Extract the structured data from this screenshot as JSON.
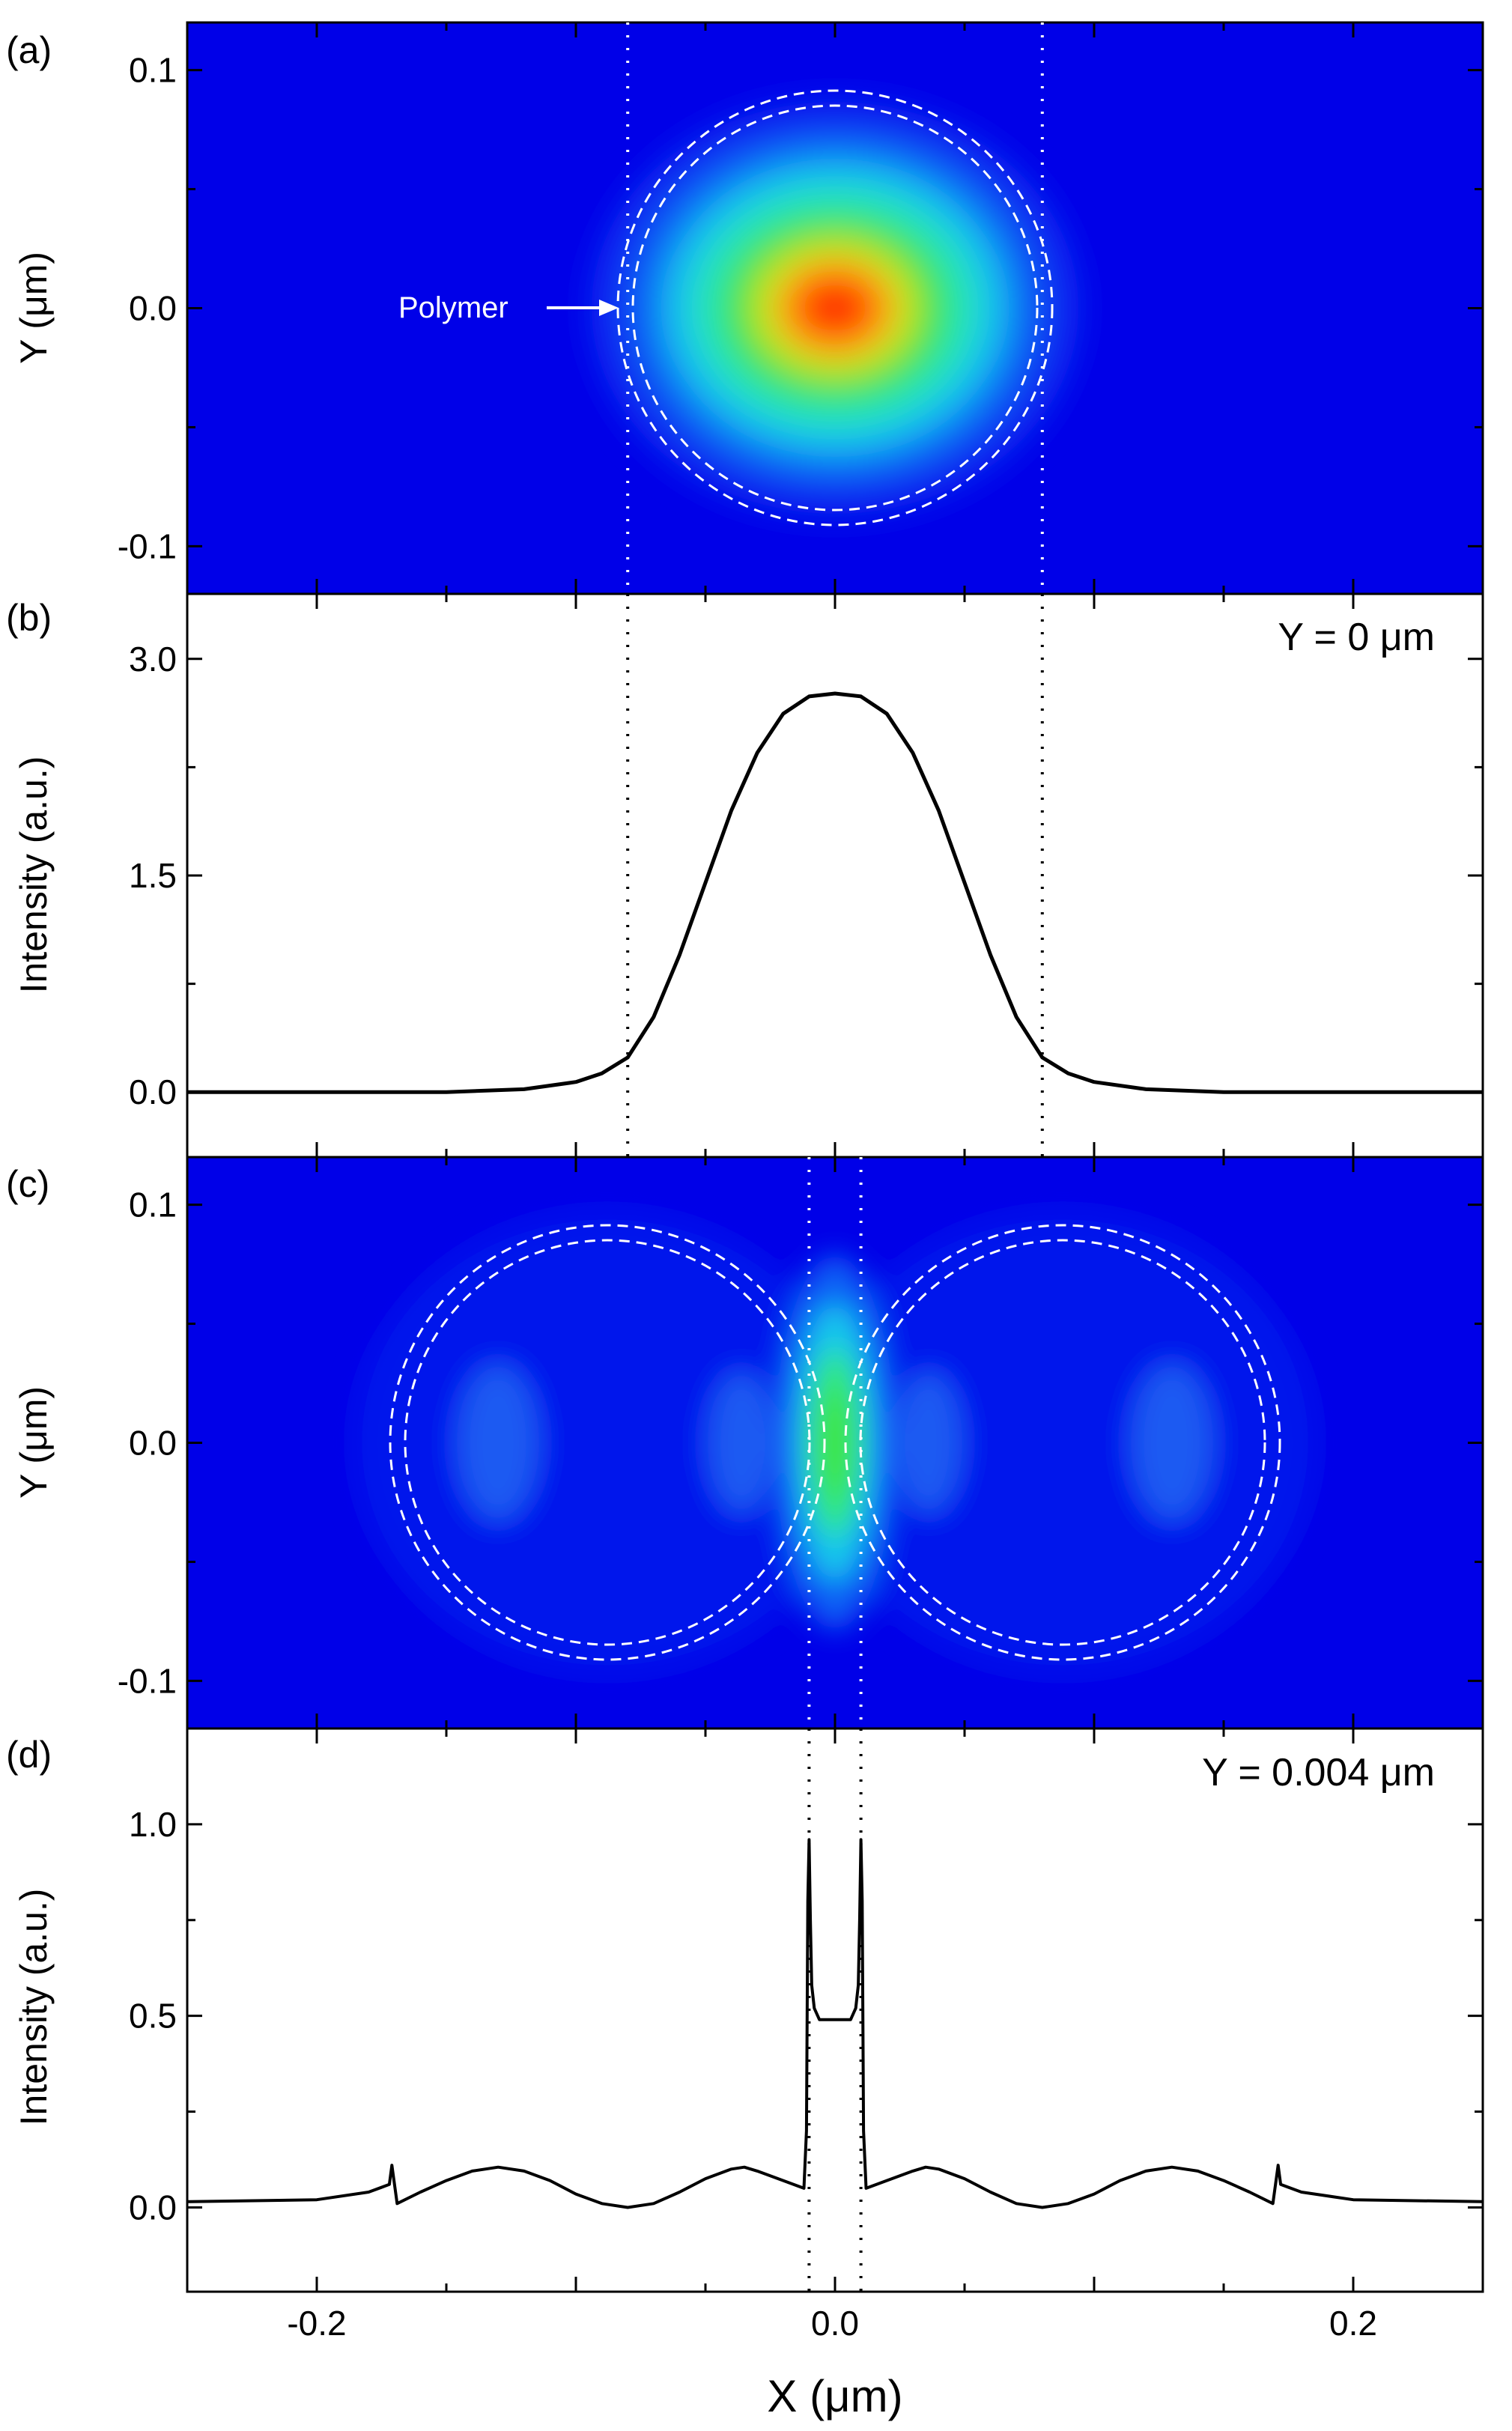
{
  "chart_data": [
    {
      "panel": "(a)",
      "type": "heatmap",
      "title": "",
      "xlabel": "",
      "ylabel": "Y (μm)",
      "xlim": [
        -0.25,
        0.25
      ],
      "ylim": [
        -0.12,
        0.12
      ],
      "y_ticks": [
        "0.1",
        "0.0",
        "-0.1"
      ],
      "field": {
        "kind": "single-gaussian",
        "center": [
          0.0,
          0.0
        ],
        "peak": 1.0
      },
      "circles": [
        {
          "cx": 0.0,
          "cy": 0.0,
          "r_outer": 0.084,
          "r_inner": 0.078
        }
      ],
      "dotted_lines_x": [
        -0.08,
        0.08
      ],
      "annotation": {
        "text": "Polymer",
        "arrow_to": [
          -0.085,
          0.0
        ]
      },
      "colors": {
        "background": "#0000e8",
        "peak": "#ff3300"
      }
    },
    {
      "panel": "(b)",
      "type": "line",
      "title": "",
      "xlabel": "",
      "ylabel": "Intensity (a.u.)",
      "xlim": [
        -0.25,
        0.25
      ],
      "ylim": [
        -0.45,
        3.45
      ],
      "y_ticks": [
        "3.0",
        "1.5",
        "0.0"
      ],
      "annotation": "Y = 0 μm",
      "dotted_lines_x": [
        -0.08,
        0.08
      ],
      "series": [
        {
          "name": "Y = 0 μm",
          "x": [
            -0.25,
            -0.15,
            -0.12,
            -0.1,
            -0.09,
            -0.08,
            -0.07,
            -0.06,
            -0.05,
            -0.04,
            -0.03,
            -0.02,
            -0.01,
            0.0,
            0.01,
            0.02,
            0.03,
            0.04,
            0.05,
            0.06,
            0.07,
            0.08,
            0.09,
            0.1,
            0.12,
            0.15,
            0.25
          ],
          "y": [
            0.0,
            0.0,
            0.02,
            0.07,
            0.13,
            0.24,
            0.52,
            0.95,
            1.45,
            1.95,
            2.35,
            2.62,
            2.74,
            2.76,
            2.74,
            2.62,
            2.35,
            1.95,
            1.45,
            0.95,
            0.52,
            0.24,
            0.13,
            0.07,
            0.02,
            0.0,
            0.0
          ]
        }
      ]
    },
    {
      "panel": "(c)",
      "type": "heatmap",
      "title": "",
      "xlabel": "",
      "ylabel": "Y (μm)",
      "xlim": [
        -0.25,
        0.25
      ],
      "ylim": [
        -0.12,
        0.12
      ],
      "y_ticks": [
        "0.1",
        "0.0",
        "-0.1"
      ],
      "field": {
        "kind": "dimer-gap",
        "gap_peak_x": 0.0,
        "lobes_x": [
          -0.13,
          -0.035,
          0.035,
          0.13
        ]
      },
      "circles": [
        {
          "cx": -0.088,
          "cy": 0.0,
          "r_outer": 0.084,
          "r_inner": 0.078
        },
        {
          "cx": 0.088,
          "cy": 0.0,
          "r_outer": 0.084,
          "r_inner": 0.078
        }
      ],
      "dotted_lines_x": [
        -0.01,
        0.01
      ],
      "colors": {
        "background": "#0000e8",
        "gap": "#33ee33"
      }
    },
    {
      "panel": "(d)",
      "type": "line",
      "title": "",
      "xlabel": "X (μm)",
      "ylabel": "Intensity (a.u.)",
      "xlim": [
        -0.25,
        0.25
      ],
      "ylim": [
        -0.22,
        1.25
      ],
      "x_ticks": [
        "-0.2",
        "0.0",
        "0.2"
      ],
      "y_ticks": [
        "1.0",
        "0.5",
        "0.0"
      ],
      "annotation": "Y = 0.004 μm",
      "dotted_lines_x": [
        -0.01,
        0.01
      ],
      "series": [
        {
          "name": "Y = 0.004 μm",
          "x": [
            -0.25,
            -0.2,
            -0.18,
            -0.172,
            -0.171,
            -0.17,
            -0.169,
            -0.16,
            -0.15,
            -0.14,
            -0.13,
            -0.12,
            -0.11,
            -0.1,
            -0.09,
            -0.08,
            -0.07,
            -0.06,
            -0.05,
            -0.04,
            -0.035,
            -0.03,
            -0.02,
            -0.012,
            -0.011,
            -0.0105,
            -0.01,
            -0.0095,
            -0.009,
            -0.008,
            -0.006,
            -0.003,
            0.0,
            0.003,
            0.006,
            0.008,
            0.009,
            0.0095,
            0.01,
            0.0105,
            0.011,
            0.012,
            0.02,
            0.03,
            0.035,
            0.04,
            0.05,
            0.06,
            0.07,
            0.08,
            0.09,
            0.1,
            0.11,
            0.12,
            0.13,
            0.14,
            0.15,
            0.16,
            0.169,
            0.17,
            0.171,
            0.172,
            0.18,
            0.2,
            0.25
          ],
          "y": [
            0.015,
            0.02,
            0.04,
            0.06,
            0.11,
            0.06,
            0.01,
            0.04,
            0.07,
            0.095,
            0.105,
            0.095,
            0.07,
            0.035,
            0.01,
            0.0,
            0.01,
            0.04,
            0.075,
            0.1,
            0.105,
            0.095,
            0.07,
            0.05,
            0.2,
            0.8,
            0.96,
            0.75,
            0.58,
            0.52,
            0.49,
            0.49,
            0.49,
            0.49,
            0.49,
            0.52,
            0.58,
            0.75,
            0.96,
            0.8,
            0.2,
            0.05,
            0.07,
            0.095,
            0.105,
            0.1,
            0.075,
            0.04,
            0.01,
            0.0,
            0.01,
            0.035,
            0.07,
            0.095,
            0.105,
            0.095,
            0.07,
            0.04,
            0.01,
            0.06,
            0.11,
            0.06,
            0.04,
            0.02,
            0.015
          ]
        }
      ]
    }
  ]
}
